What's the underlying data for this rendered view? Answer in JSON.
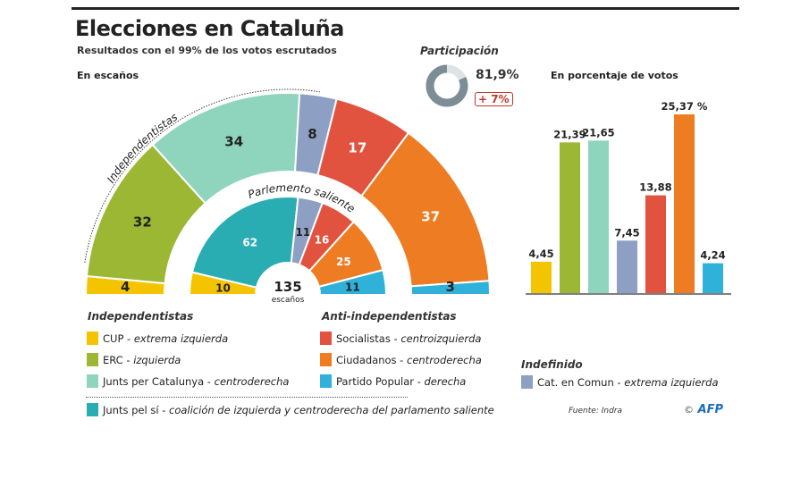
{
  "header": {
    "title": "Elecciones en Cataluña",
    "subtitle": "Resultados con el 99% de los votos escrutados"
  },
  "participation": {
    "label": "Participación",
    "value": "81,9%",
    "fraction": 0.819,
    "change": "+ 7%",
    "ring_color": "#7d8d96",
    "rest_color": "#dfe3e5"
  },
  "colors": {
    "CUP": "#f5c400",
    "ERC": "#9cb733",
    "JxCat": "#8fd4bd",
    "CatComu": "#8d9fc2",
    "PSC": "#e2533f",
    "Cs": "#ee7c22",
    "PP": "#2fb1d9",
    "JxSi": "#2aadb2"
  },
  "chart_data": [
    {
      "type": "pie",
      "subtype": "hemicycle",
      "title": "En escaños",
      "arc_label": "Independentistas",
      "center_value": "135",
      "center_label": "escaños",
      "series": [
        {
          "name": "",
          "ring": "outer",
          "parties": [
            "CUP",
            "ERC",
            "JxCat",
            "CatComu",
            "PSC",
            "Cs",
            "PP"
          ],
          "values": [
            4,
            32,
            34,
            8,
            17,
            37,
            3
          ]
        },
        {
          "name": "Parlemento saliente",
          "ring": "inner",
          "parties": [
            "CUP",
            "JxSi",
            "CatComu",
            "PSC",
            "Cs",
            "PP"
          ],
          "values": [
            10,
            62,
            11,
            16,
            25,
            11
          ]
        }
      ]
    },
    {
      "type": "bar",
      "title": "En porcentaje de votos",
      "categories": [
        "CUP",
        "ERC",
        "JxCat",
        "CatComu",
        "PSC",
        "Cs",
        "PP"
      ],
      "values": [
        4.45,
        21.39,
        21.65,
        7.45,
        13.88,
        25.37,
        4.24
      ],
      "labels": [
        "4,45",
        "21,39",
        "21,65",
        "7,45",
        "13,88",
        "25,37 %",
        "4,24"
      ],
      "ylim": [
        0,
        26
      ],
      "grid": false
    }
  ],
  "legend": {
    "independentistas": {
      "heading": "Independentistas",
      "items": [
        {
          "key": "CUP",
          "name": "CUP",
          "desc": "extrema izquierda"
        },
        {
          "key": "ERC",
          "name": "ERC",
          "desc": "izquierda"
        },
        {
          "key": "JxCat",
          "name": "Junts per Catalunya",
          "desc": "centroderecha"
        }
      ]
    },
    "anti": {
      "heading": "Anti-independentistas",
      "items": [
        {
          "key": "PSC",
          "name": "Socialistas",
          "desc": "centroizquierda"
        },
        {
          "key": "Cs",
          "name": "Ciudadanos",
          "desc": "centroderecha"
        },
        {
          "key": "PP",
          "name": "Partido Popular",
          "desc": "derecha"
        }
      ]
    },
    "indefinido": {
      "heading": "Indefinido",
      "items": [
        {
          "key": "CatComu",
          "name": "Cat. en Comun",
          "desc": "extrema izquierda"
        }
      ]
    },
    "saliente": {
      "key": "JxSi",
      "name": "Junts pel sí",
      "desc": "coalición de izquierda y centroderecha del parlamento saliente"
    }
  },
  "footer": {
    "source": "Fuente: Indra",
    "credit_symbol": "©",
    "credit": "AFP"
  }
}
